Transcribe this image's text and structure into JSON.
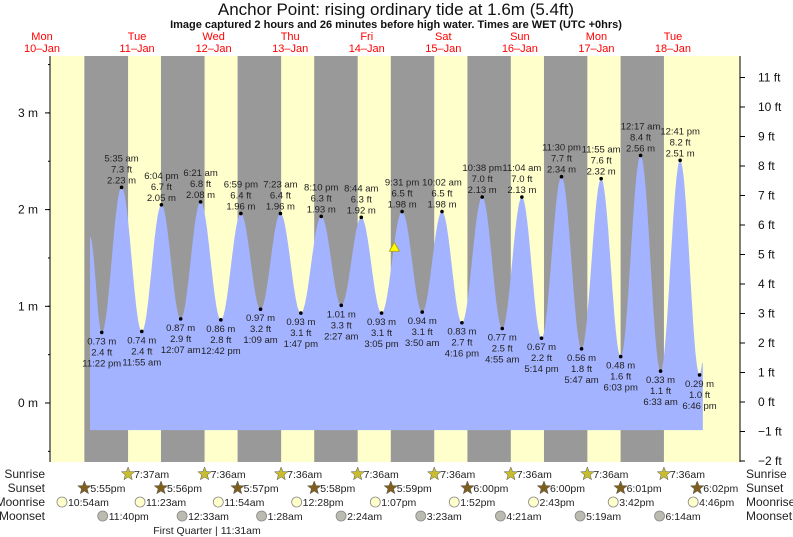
{
  "chart_data": {
    "type": "area",
    "title": "Anchor Point: rising  ordinary tide at 1.6m (5.4ft)",
    "subtitle": "Image captured 2 hours and 26 minutes before high water. Times are WET (UTC +0hrs)",
    "time_unit": "hours since Mon 10-Jan 00:00",
    "ylim_m": [
      -0.65,
      3.6
    ],
    "left_axis_ticks": [
      {
        "v": 3,
        "label": "3 m"
      },
      {
        "v": 2,
        "label": "2 m"
      },
      {
        "v": 1,
        "label": "1 m"
      },
      {
        "v": 0,
        "label": "0 m"
      }
    ],
    "right_axis_ticks": [
      {
        "v": 11,
        "label": "11 ft"
      },
      {
        "v": 10,
        "label": "10 ft"
      },
      {
        "v": 9,
        "label": "9 ft"
      },
      {
        "v": 8,
        "label": "8 ft"
      },
      {
        "v": 7,
        "label": "7 ft"
      },
      {
        "v": 6,
        "label": "6 ft"
      },
      {
        "v": 5,
        "label": "5 ft"
      },
      {
        "v": 4,
        "label": "4 ft"
      },
      {
        "v": 3,
        "label": "3 ft"
      },
      {
        "v": 2,
        "label": "2 ft"
      },
      {
        "v": 1,
        "label": "1 ft"
      },
      {
        "v": 0,
        "label": "0 ft"
      },
      {
        "v": -1,
        "label": "−1 ft"
      },
      {
        "v": -2,
        "label": "−2 ft"
      }
    ],
    "days": [
      {
        "name": "Mon",
        "date": "10–Jan"
      },
      {
        "name": "Tue",
        "date": "11–Jan"
      },
      {
        "name": "Wed",
        "date": "12–Jan"
      },
      {
        "name": "Thu",
        "date": "13–Jan"
      },
      {
        "name": "Fri",
        "date": "14–Jan"
      },
      {
        "name": "Sat",
        "date": "15–Jan"
      },
      {
        "name": "Sun",
        "date": "16–Jan"
      },
      {
        "name": "Mon",
        "date": "17–Jan"
      },
      {
        "name": "Tue",
        "date": "18–Jan"
      }
    ],
    "curve_start": {
      "t": 19.7,
      "m": 1.72
    },
    "curve_end": {
      "t": 211.8,
      "m": 0.42
    },
    "fill_floor_m": -0.28,
    "tides": [
      {
        "type": "low",
        "t": 23.37,
        "m": 0.73,
        "time": "11:22 pm",
        "ft": "2.4 ft",
        "m_label": "0.73 m"
      },
      {
        "type": "high",
        "t": 29.58,
        "m": 2.23,
        "time": "5:35 am",
        "ft": "7.3 ft",
        "m_label": "2.23 m"
      },
      {
        "type": "low",
        "t": 35.92,
        "m": 0.74,
        "time": "11:55 am",
        "ft": "2.4 ft",
        "m_label": "0.74 m"
      },
      {
        "type": "high",
        "t": 42.07,
        "m": 2.05,
        "time": "6:04 pm",
        "ft": "6.7 ft",
        "m_label": "2.05 m"
      },
      {
        "type": "low",
        "t": 48.12,
        "m": 0.87,
        "time": "12:07 am",
        "ft": "2.9 ft",
        "m_label": "0.87 m"
      },
      {
        "type": "high",
        "t": 54.35,
        "m": 2.08,
        "time": "6:21 am",
        "ft": "6.8 ft",
        "m_label": "2.08 m"
      },
      {
        "type": "low",
        "t": 60.7,
        "m": 0.86,
        "time": "12:42 pm",
        "ft": "2.8 ft",
        "m_label": "0.86 m"
      },
      {
        "type": "high",
        "t": 66.98,
        "m": 1.96,
        "time": "6:59 pm",
        "ft": "6.4 ft",
        "m_label": "1.96 m"
      },
      {
        "type": "low",
        "t": 73.15,
        "m": 0.97,
        "time": "1:09 am",
        "ft": "3.2 ft",
        "m_label": "0.97 m"
      },
      {
        "type": "high",
        "t": 79.38,
        "m": 1.96,
        "time": "7:23 am",
        "ft": "6.4 ft",
        "m_label": "1.96 m"
      },
      {
        "type": "low",
        "t": 85.78,
        "m": 0.93,
        "time": "1:47 pm",
        "ft": "3.1 ft",
        "m_label": "0.93 m"
      },
      {
        "type": "high",
        "t": 92.17,
        "m": 1.93,
        "time": "8:10 pm",
        "ft": "6.3 ft",
        "m_label": "1.93 m"
      },
      {
        "type": "low",
        "t": 98.45,
        "m": 1.01,
        "time": "2:27 am",
        "ft": "3.3 ft",
        "m_label": "1.01 m"
      },
      {
        "type": "high",
        "t": 104.73,
        "m": 1.92,
        "time": "8:44 am",
        "ft": "6.3 ft",
        "m_label": "1.92 m"
      },
      {
        "type": "low",
        "t": 111.08,
        "m": 0.93,
        "time": "3:05 pm",
        "ft": "3.1 ft",
        "m_label": "0.93 m"
      },
      {
        "type": "high",
        "t": 117.52,
        "m": 1.98,
        "time": "9:31 pm",
        "ft": "6.5 ft",
        "m_label": "1.98 m"
      },
      {
        "type": "low",
        "t": 123.83,
        "m": 0.94,
        "time": "3:50 am",
        "ft": "3.1 ft",
        "m_label": "0.94 m"
      },
      {
        "type": "high",
        "t": 130.03,
        "m": 1.98,
        "time": "10:02 am",
        "ft": "6.5 ft",
        "m_label": "1.98 m"
      },
      {
        "type": "low",
        "t": 136.27,
        "m": 0.83,
        "time": "4:16 pm",
        "ft": "2.7 ft",
        "m_label": "0.83 m"
      },
      {
        "type": "high",
        "t": 142.63,
        "m": 2.13,
        "time": "10:38 pm",
        "ft": "7.0 ft",
        "m_label": "2.13 m"
      },
      {
        "type": "low",
        "t": 148.92,
        "m": 0.77,
        "time": "4:55 am",
        "ft": "2.5 ft",
        "m_label": "0.77 m"
      },
      {
        "type": "high",
        "t": 155.07,
        "m": 2.13,
        "time": "11:04 am",
        "ft": "7.0 ft",
        "m_label": "2.13 m"
      },
      {
        "type": "low",
        "t": 161.23,
        "m": 0.67,
        "time": "5:14 pm",
        "ft": "2.2 ft",
        "m_label": "0.67 m"
      },
      {
        "type": "high",
        "t": 167.5,
        "m": 2.34,
        "time": "11:30 pm",
        "ft": "7.7 ft",
        "m_label": "2.34 m"
      },
      {
        "type": "low",
        "t": 173.78,
        "m": 0.56,
        "time": "5:47 am",
        "ft": "1.8 ft",
        "m_label": "0.56 m"
      },
      {
        "type": "high",
        "t": 179.92,
        "m": 2.32,
        "time": "11:55 am",
        "ft": "7.6 ft",
        "m_label": "2.32 m"
      },
      {
        "type": "low",
        "t": 186.05,
        "m": 0.48,
        "time": "6:03 pm",
        "ft": "1.6 ft",
        "m_label": "0.48 m"
      },
      {
        "type": "high",
        "t": 192.28,
        "m": 2.56,
        "time": "12:17 am",
        "ft": "8.4 ft",
        "m_label": "2.56 m"
      },
      {
        "type": "low",
        "t": 198.55,
        "m": 0.33,
        "time": "6:33 am",
        "ft": "1.1 ft",
        "m_label": "0.33 m"
      },
      {
        "type": "high",
        "t": 204.68,
        "m": 2.51,
        "time": "12:41 pm",
        "ft": "8.2 ft",
        "m_label": "2.51 m"
      },
      {
        "type": "low",
        "t": 210.77,
        "m": 0.29,
        "time": "6:46 pm",
        "ft": "1.0 ft",
        "m_label": "0.29 m"
      }
    ],
    "current": {
      "t": 115.1,
      "m": 1.6
    },
    "sunrise": [
      {
        "t": 31.62,
        "label": "7:37am"
      },
      {
        "t": 55.6,
        "label": "7:36am"
      },
      {
        "t": 79.6,
        "label": "7:36am"
      },
      {
        "t": 103.6,
        "label": "7:36am"
      },
      {
        "t": 127.6,
        "label": "7:36am"
      },
      {
        "t": 151.6,
        "label": "7:36am"
      },
      {
        "t": 175.6,
        "label": "7:36am"
      },
      {
        "t": 199.6,
        "label": "7:36am"
      }
    ],
    "sunset": [
      {
        "t": 17.92,
        "label": "5:55pm"
      },
      {
        "t": 41.93,
        "label": "5:56pm"
      },
      {
        "t": 65.95,
        "label": "5:57pm"
      },
      {
        "t": 89.97,
        "label": "5:58pm"
      },
      {
        "t": 113.98,
        "label": "5:59pm"
      },
      {
        "t": 138.0,
        "label": "6:00pm"
      },
      {
        "t": 162.0,
        "label": "6:00pm"
      },
      {
        "t": 186.02,
        "label": "6:01pm"
      },
      {
        "t": 210.03,
        "label": "6:02pm"
      }
    ],
    "moonrise": [
      {
        "t": 10.9,
        "label": "10:54am"
      },
      {
        "t": 35.38,
        "label": "11:23am"
      },
      {
        "t": 59.9,
        "label": "11:54am"
      },
      {
        "t": 84.47,
        "label": "12:28pm"
      },
      {
        "t": 109.12,
        "label": "1:07pm"
      },
      {
        "t": 133.87,
        "label": "1:52pm"
      },
      {
        "t": 158.72,
        "label": "2:43pm"
      },
      {
        "t": 183.7,
        "label": "3:42pm"
      },
      {
        "t": 208.77,
        "label": "4:46pm"
      }
    ],
    "moonset": [
      {
        "t": 23.67,
        "label": "11:40pm"
      },
      {
        "t": 48.55,
        "label": "12:33am"
      },
      {
        "t": 73.47,
        "label": "1:28am"
      },
      {
        "t": 98.4,
        "label": "2:24am"
      },
      {
        "t": 123.38,
        "label": "3:23am"
      },
      {
        "t": 148.35,
        "label": "4:21am"
      },
      {
        "t": 173.32,
        "label": "5:19am"
      },
      {
        "t": 198.23,
        "label": "6:14am"
      }
    ],
    "row_labels": {
      "sunrise": "Sunrise",
      "sunset": "Sunset",
      "moonrise": "Moonrise",
      "moonset": "Moonset"
    },
    "moon_phase": {
      "t": 59.5,
      "label": "First Quarter | 11:31am"
    },
    "colors": {
      "day": "#ffffcc",
      "night": "#999999",
      "water": "#a3b3ff",
      "day_label": "#ff0000",
      "sunrise": "#c8bd2e",
      "sunset": "#7f5f1c",
      "moonrise": "#ffffcc",
      "moonset": "#bbbbb0",
      "marker": "#ffff00"
    }
  }
}
